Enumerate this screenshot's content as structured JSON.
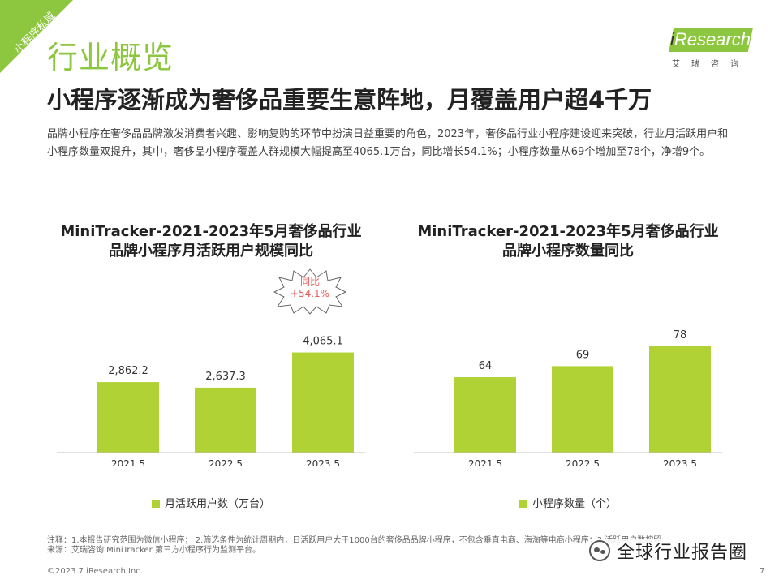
{
  "corner_tag": "小程序私域",
  "page_title": "行业概览",
  "logo": {
    "brand_i": "i",
    "brand_rest": "Research",
    "sub": "艾瑞咨询"
  },
  "subtitle": "小程序逐渐成为奢侈品重要生意阵地，月覆盖用户超4千万",
  "description": "品牌小程序在奢侈品品牌激发消费者兴趣、影响复购的环节中扮演日益重要的角色，2023年，奢侈品行业小程序建设迎来突破，行业月活跃用户和小程序数量双提升，其中，奢侈品小程序覆盖人群规模大幅提高至4065.1万台，同比增长54.1%；小程序数量从69个增加至78个，净增9个。",
  "colors": {
    "accent": "#8dc63f",
    "bar": "#b0d235",
    "highlight": "#e85c5c"
  },
  "chart_data": [
    {
      "type": "bar",
      "title": "MiniTracker-2021-2023年5月奢侈品行业品牌小程序月活跃用户规模同比",
      "title_lines": [
        "MiniTracker-2021-2023年5月奢侈品行业",
        "品牌小程序月活跃用户规模同比"
      ],
      "categories": [
        "2021.5",
        "2022.5",
        "2023.5"
      ],
      "values": [
        2862.2,
        2637.3,
        4065.1
      ],
      "value_labels": [
        "2,862.2",
        "2,637.3",
        "4,065.1"
      ],
      "series": [
        {
          "name": "月活跃用户数（万台）",
          "values": [
            2862.2,
            2637.3,
            4065.1
          ]
        }
      ],
      "legend": "月活跃用户数（万台）",
      "ylim": [
        0,
        5400
      ],
      "annotation": {
        "line1": "同比",
        "line2": "+54.1%"
      }
    },
    {
      "type": "bar",
      "title": "MiniTracker-2021-2023年5月奢侈品行业品牌小程序数量同比",
      "title_lines": [
        "MiniTracker-2021-2023年5月奢侈品行业",
        "品牌小程序数量同比"
      ],
      "categories": [
        "2021.5",
        "2022.5",
        "2023.5"
      ],
      "values": [
        64,
        69,
        78
      ],
      "value_labels": [
        "64",
        "69",
        "78"
      ],
      "series": [
        {
          "name": "小程序数量（个）",
          "values": [
            64,
            69,
            78
          ]
        }
      ],
      "legend": "小程序数量（个）",
      "ylim": [
        30,
        90
      ]
    }
  ],
  "footnote": {
    "line1": "注释：1.本报告研究范围为微信小程序；  2.筛选条件为统计周期内，日活跃用户大于1000台的奢侈品品牌小程序，不包含垂直电商、海淘等电商小程序；3.活跃用户数按照",
    "line2": "来源：艾瑞咨询 MiniTracker 第三方小程序行为监测平台。"
  },
  "copyright": "©2023.7 iResearch Inc.",
  "page_number": "7",
  "watermark": "全球行业报告圈"
}
